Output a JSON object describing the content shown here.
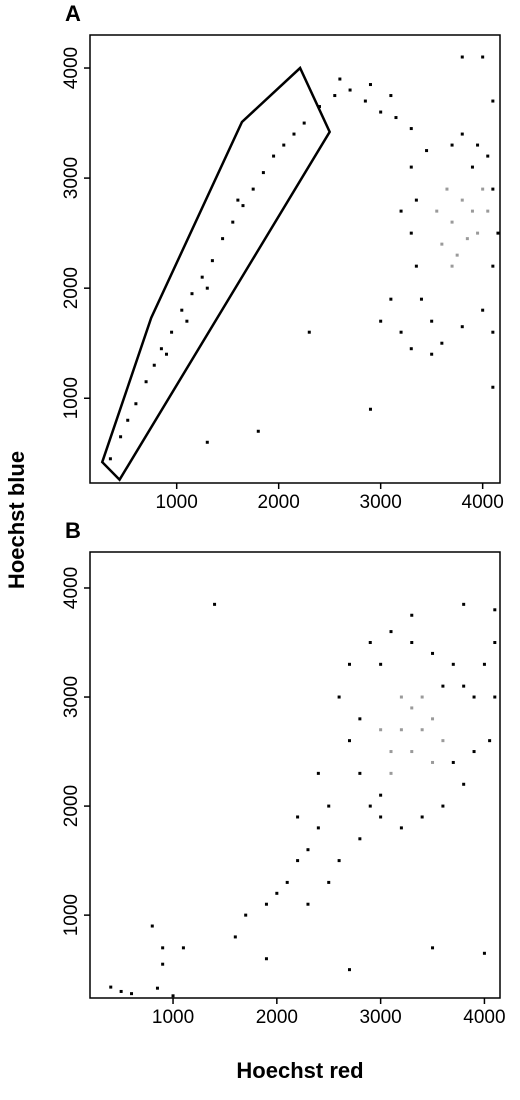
{
  "ylabel": "Hoechst blue",
  "xlabel": "Hoechst red",
  "chart_data": [
    {
      "type": "scatter",
      "panel": "A",
      "xlim": [
        150,
        4170
      ],
      "ylim": [
        230,
        4300
      ],
      "xticks": [
        1000,
        2000,
        3000,
        4000
      ],
      "yticks": [
        1000,
        2000,
        3000,
        4000
      ],
      "gate": {
        "x": [
          270,
          750,
          1640,
          2210,
          2500,
          440
        ],
        "y": [
          420,
          1730,
          3510,
          4000,
          3420,
          260
        ],
        "color": "#000000"
      },
      "series": [
        {
          "color": "#000000",
          "x": [
            350,
            450,
            520,
            600,
            700,
            780,
            850,
            950,
            1050,
            1150,
            1250,
            1350,
            1450,
            1550,
            1650,
            1750,
            1850,
            1950,
            2050,
            2150,
            2250,
            1300,
            1100,
            900,
            1600,
            2400,
            2550,
            2700,
            2850,
            3000,
            3150,
            3300,
            2600,
            2900,
            3100,
            3300,
            3350,
            3300,
            3350,
            3400,
            3500,
            3600,
            3700,
            3800,
            3950,
            4050,
            4100,
            4100,
            4000,
            3800,
            3200,
            3100,
            3200,
            3450,
            4150,
            3500,
            3300,
            3000,
            4100,
            3900,
            1800,
            2300,
            2900,
            1300,
            4000,
            4100,
            4100,
            3800
          ],
          "y": [
            450,
            650,
            800,
            950,
            1150,
            1300,
            1450,
            1600,
            1800,
            1950,
            2100,
            2250,
            2450,
            2600,
            2750,
            2900,
            3050,
            3200,
            3300,
            3400,
            3500,
            2000,
            1700,
            1400,
            2800,
            3650,
            3750,
            3800,
            3700,
            3600,
            3550,
            3450,
            3900,
            3850,
            3750,
            3100,
            2800,
            2500,
            2200,
            1900,
            1700,
            1500,
            3300,
            3400,
            3300,
            3200,
            2900,
            2200,
            1800,
            1650,
            1600,
            1900,
            2700,
            3250,
            2500,
            1400,
            1450,
            1700,
            1600,
            3100,
            700,
            1600,
            900,
            600,
            4100,
            3700,
            1100,
            4100
          ]
        },
        {
          "color": "#9a9a9a",
          "x": [
            3600,
            3700,
            3800,
            3900,
            3750,
            3650,
            3950,
            4050,
            3550,
            3850,
            4000,
            3700
          ],
          "y": [
            2400,
            2600,
            2800,
            2700,
            2300,
            2900,
            2500,
            2700,
            2700,
            2450,
            2900,
            2200
          ]
        }
      ]
    },
    {
      "type": "scatter",
      "panel": "B",
      "xlim": [
        200,
        4150
      ],
      "ylim": [
        240,
        4330
      ],
      "xticks": [
        1000,
        2000,
        3000,
        4000
      ],
      "yticks": [
        1000,
        2000,
        3000,
        4000
      ],
      "series": [
        {
          "color": "#000000",
          "x": [
            2600,
            2700,
            2800,
            2900,
            3000,
            2500,
            2400,
            2300,
            2200,
            2100,
            2000,
            1900,
            2600,
            2800,
            2500,
            2300,
            2700,
            2900,
            3100,
            3300,
            3500,
            3700,
            3800,
            3900,
            4000,
            4100,
            4100,
            4050,
            3900,
            3800,
            3600,
            3400,
            3200,
            3000,
            2800,
            3000,
            3600,
            3700,
            2400,
            2200,
            1700,
            1600,
            1900,
            2700,
            3500,
            4000,
            800,
            900,
            900,
            1100,
            400,
            500,
            600,
            850,
            1000,
            1400,
            3300,
            3800,
            4100
          ],
          "y": [
            3000,
            2600,
            2300,
            2000,
            1900,
            2000,
            1800,
            1600,
            1500,
            1300,
            1200,
            1100,
            1500,
            1700,
            1300,
            1100,
            3300,
            3500,
            3600,
            3500,
            3400,
            3300,
            3100,
            3000,
            3300,
            3500,
            3000,
            2600,
            2500,
            2200,
            2000,
            1900,
            1800,
            2100,
            2800,
            3300,
            3100,
            2400,
            2300,
            1900,
            1000,
            800,
            600,
            500,
            700,
            650,
            900,
            700,
            550,
            700,
            340,
            300,
            280,
            330,
            260,
            3850,
            3750,
            3850,
            3800
          ]
        },
        {
          "color": "#9a9a9a",
          "x": [
            3100,
            3200,
            3300,
            3400,
            3300,
            3500,
            3200,
            3000,
            3400,
            3600,
            3100,
            3500
          ],
          "y": [
            2500,
            2700,
            2900,
            2700,
            2500,
            2800,
            3000,
            2700,
            3000,
            2600,
            2300,
            2400
          ]
        }
      ]
    }
  ]
}
